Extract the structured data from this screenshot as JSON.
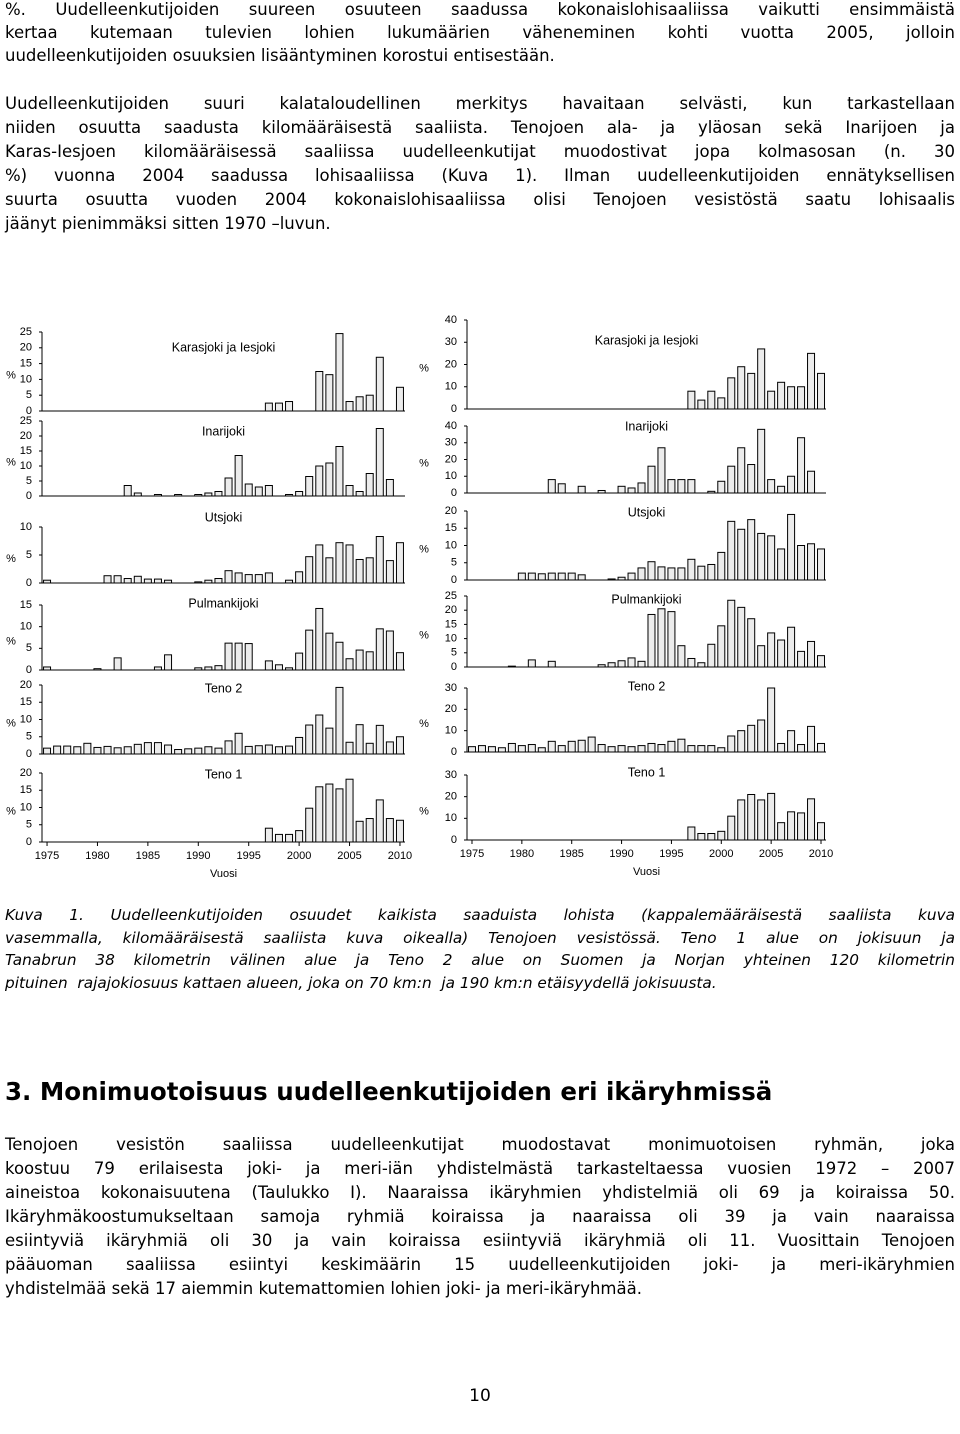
{
  "paragraphs": [
    [
      "%. Uudelleenkutijoiden suureen osuuteen saadussa kokonaislohisaaliissa vaikutti ensimmäistä",
      "kertaa kutemaan tulevien lohien lukumäärien väheneminen kohti vuotta 2005, jolloin",
      "uudelleenkutijoiden osuuksien lisääntyminen korostui entisestään."
    ],
    [
      "Uudelleenkutijoiden suuri kalataloudellinen merkitys havaitaan selvästi, kun tarkastellaan",
      "niiden osuutta saadusta kilomääräisestä saaliista. Tenojoen ala- ja yläosan sekä Inarijoen ja",
      "Karas-Iesjoen kilomääräisessä saaliissa uudelleenkutijat muodostivat jopa kolmasosan (n. 30",
      "%) vuonna 2004 saadussa lohisaaliissa (Kuva 1). Ilman uudelleenkutijoiden ennätyksellisen",
      "suurta osuutta vuoden 2004 kokonaislohisaaliissa olisi Tenojoen vesistöstä saatu lohisaalis",
      "jäänyt pienimmäksi sitten 1970 –luvun."
    ]
  ],
  "chart_data": [
    {
      "type": "bar",
      "title": "Karasjoki ja Iesjoki",
      "ylabel": "%",
      "color": "#ececec",
      "x": [
        1975,
        1976,
        1977,
        1978,
        1979,
        1980,
        1981,
        1982,
        1983,
        1984,
        1985,
        1986,
        1987,
        1988,
        1989,
        1990,
        1991,
        1992,
        1993,
        1994,
        1995,
        1996,
        1997,
        1998,
        1999,
        2000,
        2001,
        2002,
        2003,
        2004,
        2005,
        2006,
        2007,
        2008,
        2009,
        2010
      ],
      "values": [
        null,
        null,
        null,
        null,
        null,
        null,
        null,
        null,
        null,
        null,
        null,
        null,
        null,
        null,
        null,
        null,
        null,
        null,
        null,
        null,
        null,
        null,
        2.5,
        2.5,
        3,
        null,
        null,
        12.5,
        11.5,
        24.5,
        3,
        4.5,
        5,
        17,
        null,
        7.5
      ],
      "xlim": [
        1974.5,
        2010.5
      ],
      "ylim": [
        0,
        25
      ],
      "yticks": [
        0,
        5,
        10,
        15,
        20,
        25
      ]
    },
    {
      "type": "bar",
      "title": "Inarijoki",
      "ylabel": "%",
      "color": "#ececec",
      "x": [
        1975,
        1976,
        1977,
        1978,
        1979,
        1980,
        1981,
        1982,
        1983,
        1984,
        1985,
        1986,
        1987,
        1988,
        1989,
        1990,
        1991,
        1992,
        1993,
        1994,
        1995,
        1996,
        1997,
        1998,
        1999,
        2000,
        2001,
        2002,
        2003,
        2004,
        2005,
        2006,
        2007,
        2008,
        2009,
        2010
      ],
      "values": [
        null,
        null,
        null,
        null,
        null,
        null,
        null,
        null,
        3.5,
        1,
        null,
        0.5,
        null,
        0.5,
        null,
        0.5,
        1,
        1.5,
        6,
        13.5,
        4,
        3,
        3.5,
        null,
        0.5,
        1.5,
        6.5,
        10,
        11,
        16.5,
        3.5,
        1.5,
        7.5,
        22.5,
        5.5,
        null
      ],
      "xlim": [
        1974.5,
        2010.5
      ],
      "ylim": [
        0,
        25
      ],
      "yticks": [
        0,
        5,
        10,
        15,
        20,
        25
      ]
    },
    {
      "type": "bar",
      "title": "Utsjoki",
      "ylabel": "%",
      "color": "#ececec",
      "x": [
        1975,
        1976,
        1977,
        1978,
        1979,
        1980,
        1981,
        1982,
        1983,
        1984,
        1985,
        1986,
        1987,
        1988,
        1989,
        1990,
        1991,
        1992,
        1993,
        1994,
        1995,
        1996,
        1997,
        1998,
        1999,
        2000,
        2001,
        2002,
        2003,
        2004,
        2005,
        2006,
        2007,
        2008,
        2009,
        2010
      ],
      "values": [
        0.5,
        null,
        null,
        null,
        null,
        null,
        1.3,
        1.3,
        0.8,
        1.2,
        0.7,
        0.7,
        0.5,
        null,
        null,
        0.2,
        0.5,
        0.8,
        2.2,
        1.8,
        1.5,
        1.5,
        1.8,
        null,
        0.5,
        2,
        4.7,
        6.8,
        4.5,
        7.2,
        6.8,
        4.2,
        4.5,
        8.3,
        4,
        7.2
      ],
      "xlim": [
        1974.5,
        2010.5
      ],
      "ylim": [
        0,
        10
      ],
      "yticks": [
        0,
        5,
        10
      ]
    },
    {
      "type": "bar",
      "title": "Pulmankijoki",
      "ylabel": "%",
      "color": "#ececec",
      "x": [
        1975,
        1976,
        1977,
        1978,
        1979,
        1980,
        1981,
        1982,
        1983,
        1984,
        1985,
        1986,
        1987,
        1988,
        1989,
        1990,
        1991,
        1992,
        1993,
        1994,
        1995,
        1996,
        1997,
        1998,
        1999,
        2000,
        2001,
        2002,
        2003,
        2004,
        2005,
        2006,
        2007,
        2008,
        2009,
        2010
      ],
      "values": [
        0.7,
        null,
        null,
        null,
        null,
        0.3,
        null,
        2.8,
        null,
        null,
        null,
        0.7,
        3.5,
        null,
        null,
        0.5,
        0.7,
        1,
        6.2,
        6.2,
        6.1,
        null,
        2.1,
        1.2,
        0.5,
        3.9,
        9.2,
        14.2,
        8.5,
        6.4,
        2.6,
        4.6,
        4.2,
        9.5,
        9,
        4
      ],
      "xlim": [
        1974.5,
        2010.5
      ],
      "ylim": [
        0,
        15
      ],
      "yticks": [
        0,
        5,
        10,
        15
      ]
    },
    {
      "type": "bar",
      "title": "Teno 2",
      "ylabel": "%",
      "color": "#ececec",
      "x": [
        1975,
        1976,
        1977,
        1978,
        1979,
        1980,
        1981,
        1982,
        1983,
        1984,
        1985,
        1986,
        1987,
        1988,
        1989,
        1990,
        1991,
        1992,
        1993,
        1994,
        1995,
        1996,
        1997,
        1998,
        1999,
        2000,
        2001,
        2002,
        2003,
        2004,
        2005,
        2006,
        2007,
        2008,
        2009,
        2010
      ],
      "values": [
        1.7,
        2.3,
        2.3,
        2.1,
        3.1,
        1.9,
        2.2,
        1.8,
        2.1,
        2.8,
        3.3,
        3.3,
        2.6,
        1.3,
        1.5,
        1.7,
        2.1,
        1.7,
        3.8,
        6,
        2.2,
        2.4,
        2.6,
        2.1,
        2.3,
        4.8,
        8.4,
        11.3,
        7.5,
        19.3,
        3.4,
        8.5,
        3.1,
        8.3,
        3.5,
        5
      ],
      "xlim": [
        1974.5,
        2010.5
      ],
      "ylim": [
        0,
        20
      ],
      "yticks": [
        0,
        5,
        10,
        15,
        20
      ]
    },
    {
      "type": "bar",
      "title": "Teno 1",
      "ylabel": "%",
      "color": "#ececec",
      "xlabel": "Vuosi",
      "x": [
        1975,
        1976,
        1977,
        1978,
        1979,
        1980,
        1981,
        1982,
        1983,
        1984,
        1985,
        1986,
        1987,
        1988,
        1989,
        1990,
        1991,
        1992,
        1993,
        1994,
        1995,
        1996,
        1997,
        1998,
        1999,
        2000,
        2001,
        2002,
        2003,
        2004,
        2005,
        2006,
        2007,
        2008,
        2009,
        2010
      ],
      "values": [
        null,
        null,
        null,
        null,
        null,
        null,
        null,
        null,
        null,
        null,
        null,
        null,
        null,
        null,
        null,
        null,
        null,
        null,
        null,
        null,
        null,
        null,
        4,
        2.2,
        2.2,
        3.3,
        9.8,
        16,
        16.8,
        15.4,
        18.2,
        6,
        6.8,
        12.2,
        6.8,
        6.3
      ],
      "xlim": [
        1974.5,
        2010.5
      ],
      "xticks": [
        1975,
        1980,
        1985,
        1990,
        1995,
        2000,
        2005,
        2010
      ],
      "ylim": [
        0,
        20
      ],
      "yticks": [
        0,
        5,
        10,
        15,
        20
      ]
    },
    {
      "type": "bar",
      "title": "Karasjoki ja Iesjoki",
      "ylabel": "%",
      "color": "#ececec",
      "x": [
        1975,
        1976,
        1977,
        1978,
        1979,
        1980,
        1981,
        1982,
        1983,
        1984,
        1985,
        1986,
        1987,
        1988,
        1989,
        1990,
        1991,
        1992,
        1993,
        1994,
        1995,
        1996,
        1997,
        1998,
        1999,
        2000,
        2001,
        2002,
        2003,
        2004,
        2005,
        2006,
        2007,
        2008,
        2009,
        2010
      ],
      "values": [
        null,
        null,
        null,
        null,
        null,
        null,
        null,
        null,
        null,
        null,
        null,
        null,
        null,
        null,
        null,
        null,
        null,
        null,
        null,
        null,
        null,
        null,
        8,
        4,
        8,
        5,
        14,
        19,
        16,
        27,
        8,
        12,
        10,
        10,
        25,
        16
      ],
      "xlim": [
        1974.5,
        2010.5
      ],
      "ylim": [
        0,
        40
      ],
      "yticks": [
        0,
        10,
        20,
        30,
        40
      ]
    },
    {
      "type": "bar",
      "title": "Inarijoki",
      "ylabel": "%",
      "color": "#ececec",
      "x": [
        1975,
        1976,
        1977,
        1978,
        1979,
        1980,
        1981,
        1982,
        1983,
        1984,
        1985,
        1986,
        1987,
        1988,
        1989,
        1990,
        1991,
        1992,
        1993,
        1994,
        1995,
        1996,
        1997,
        1998,
        1999,
        2000,
        2001,
        2002,
        2003,
        2004,
        2005,
        2006,
        2007,
        2008,
        2009,
        2010
      ],
      "values": [
        null,
        null,
        null,
        null,
        null,
        null,
        null,
        null,
        8,
        5.5,
        null,
        4,
        null,
        1.5,
        null,
        4,
        3,
        6,
        16,
        27,
        8,
        8,
        8,
        null,
        1,
        7,
        16,
        27,
        17,
        38,
        8,
        4,
        10,
        33,
        13,
        null
      ],
      "xlim": [
        1974.5,
        2010.5
      ],
      "ylim": [
        0,
        40
      ],
      "yticks": [
        0,
        10,
        20,
        30,
        40
      ]
    },
    {
      "type": "bar",
      "title": "Utsjoki",
      "ylabel": "%",
      "color": "#ececec",
      "x": [
        1975,
        1976,
        1977,
        1978,
        1979,
        1980,
        1981,
        1982,
        1983,
        1984,
        1985,
        1986,
        1987,
        1988,
        1989,
        1990,
        1991,
        1992,
        1993,
        1994,
        1995,
        1996,
        1997,
        1998,
        1999,
        2000,
        2001,
        2002,
        2003,
        2004,
        2005,
        2006,
        2007,
        2008,
        2009,
        2010
      ],
      "values": [
        null,
        null,
        null,
        null,
        null,
        2,
        2,
        1.8,
        2,
        2,
        2,
        1.5,
        null,
        null,
        0.3,
        0.8,
        2,
        3.5,
        5.3,
        3.8,
        3.5,
        3.5,
        6,
        4,
        4.5,
        8,
        17,
        14.7,
        17.5,
        13.5,
        12.8,
        9,
        19,
        10,
        10.5,
        9
      ],
      "xlim": [
        1974.5,
        2010.5
      ],
      "ylim": [
        0,
        20
      ],
      "yticks": [
        0,
        5,
        10,
        15,
        20
      ]
    },
    {
      "type": "bar",
      "title": "Pulmankijoki",
      "ylabel": "%",
      "color": "#ececec",
      "x": [
        1975,
        1976,
        1977,
        1978,
        1979,
        1980,
        1981,
        1982,
        1983,
        1984,
        1985,
        1986,
        1987,
        1988,
        1989,
        1990,
        1991,
        1992,
        1993,
        1994,
        1995,
        1996,
        1997,
        1998,
        1999,
        2000,
        2001,
        2002,
        2003,
        2004,
        2005,
        2006,
        2007,
        2008,
        2009,
        2010
      ],
      "values": [
        null,
        null,
        null,
        null,
        0.3,
        null,
        2.5,
        null,
        2,
        null,
        null,
        null,
        null,
        0.8,
        1.5,
        2.2,
        3.2,
        2,
        18.5,
        20.5,
        19.5,
        7.5,
        3,
        1.5,
        8,
        14.5,
        23.5,
        21,
        17,
        7.5,
        12,
        9.5,
        14,
        5.5,
        9,
        4
      ],
      "xlim": [
        1974.5,
        2010.5
      ],
      "ylim": [
        0,
        25
      ],
      "yticks": [
        0,
        5,
        10,
        15,
        20,
        25
      ]
    },
    {
      "type": "bar",
      "title": "Teno 2",
      "ylabel": "%",
      "color": "#ececec",
      "x": [
        1975,
        1976,
        1977,
        1978,
        1979,
        1980,
        1981,
        1982,
        1983,
        1984,
        1985,
        1986,
        1987,
        1988,
        1989,
        1990,
        1991,
        1992,
        1993,
        1994,
        1995,
        1996,
        1997,
        1998,
        1999,
        2000,
        2001,
        2002,
        2003,
        2004,
        2005,
        2006,
        2007,
        2008,
        2009,
        2010
      ],
      "values": [
        2.5,
        3,
        2.5,
        2,
        4,
        3,
        3.5,
        2,
        5,
        3,
        5,
        5.5,
        7,
        3.5,
        2.5,
        3,
        2.5,
        3,
        4,
        3.5,
        5,
        6,
        3,
        3,
        3,
        2,
        7.5,
        10,
        12.5,
        15,
        30,
        4,
        10,
        3.5,
        12,
        4
      ],
      "xlim": [
        1974.5,
        2010.5
      ],
      "ylim": [
        0,
        30
      ],
      "yticks": [
        0,
        10,
        20,
        30
      ]
    },
    {
      "type": "bar",
      "title": "Teno 1",
      "ylabel": "%",
      "color": "#ececec",
      "xlabel": "Vuosi",
      "x": [
        1975,
        1976,
        1977,
        1978,
        1979,
        1980,
        1981,
        1982,
        1983,
        1984,
        1985,
        1986,
        1987,
        1988,
        1989,
        1990,
        1991,
        1992,
        1993,
        1994,
        1995,
        1996,
        1997,
        1998,
        1999,
        2000,
        2001,
        2002,
        2003,
        2004,
        2005,
        2006,
        2007,
        2008,
        2009,
        2010
      ],
      "values": [
        null,
        null,
        null,
        null,
        null,
        null,
        null,
        null,
        null,
        null,
        null,
        null,
        null,
        null,
        null,
        null,
        null,
        null,
        null,
        null,
        null,
        null,
        6,
        3,
        3,
        4,
        11,
        18.5,
        21,
        18.5,
        21.5,
        8,
        13,
        12.5,
        19,
        8
      ],
      "xlim": [
        1974.5,
        2010.5
      ],
      "xticks": [
        1975,
        1980,
        1985,
        1990,
        1995,
        2000,
        2005,
        2010
      ],
      "ylim": [
        0,
        30
      ],
      "yticks": [
        0,
        10,
        20,
        30
      ]
    }
  ],
  "caption": [
    "Kuva 1. Uudelleenkutijoiden osuudet kaikista saaduista lohista (kappalemääräisestä saaliista kuva",
    "vasemmalla, kilomääräisestä saaliista kuva oikealla) Tenojoen vesistössä. Teno 1 alue on jokisuun ja",
    "Tanabrun 38 kilometrin välinen alue ja Teno 2 alue on Suomen ja Norjan yhteinen 120 kilometrin",
    "pituinen  rajajokiosuus kattaen alueen, joka on 70 km:n  ja 190 km:n etäisyydellä jokisuusta."
  ],
  "heading": "3. Monimuotoisuus uudelleenkutijoiden eri ikäryhmissä",
  "section_text": [
    "Tenojoen vesistön saaliissa uudelleenkutijat muodostavat monimuotoisen ryhmän, joka",
    "koostuu 79 erilaisesta joki- ja meri-iän yhdistelmästä tarkasteltaessa vuosien 1972 – 2007",
    "aineistoa kokonaisuutena (Taulukko I). Naaraissa ikäryhmien yhdistelmiä oli 69 ja koiraissa 50.",
    "Ikäryhmäkoostumukseltaan samoja ryhmiä koiraissa ja naaraissa oli 39 ja vain naaraissa",
    "esiintyviä ikäryhmiä oli 30 ja vain koiraissa esiintyviä ikäryhmiä oli 11. Vuosittain Tenojoen",
    "pääuoman saaliissa esiintyi keskimäärin 15 uudelleenkutijoiden joki- ja meri-ikäryhmien",
    "yhdistelmää sekä 17 aiemmin kutemattomien lohien joki- ja meri-ikäryhmää."
  ],
  "page_number": "10"
}
